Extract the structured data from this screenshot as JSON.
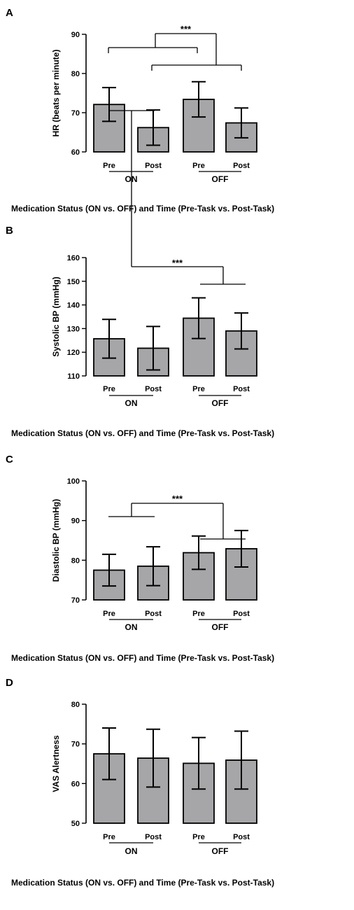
{
  "colors": {
    "bar": "#a6a6a8",
    "stroke": "#000000"
  },
  "chart_data": [
    {
      "type": "bar",
      "panel": "A",
      "ylabel": "HR (beats per minute)",
      "xlabel": "Medication Status (ON vs. OFF) and Time (Pre-Task vs. Post-Task)",
      "ylim": [
        60,
        90
      ],
      "yticks": [
        "60",
        "70",
        "80",
        "90"
      ],
      "categories": [
        "Pre",
        "Post",
        "Pre",
        "Post"
      ],
      "groups": [
        "ON",
        "OFF"
      ],
      "values": [
        72.1,
        66.2,
        73.4,
        67.4
      ],
      "errors": [
        4.3,
        4.5,
        4.5,
        3.8
      ],
      "significance": "***",
      "grid": false
    },
    {
      "type": "bar",
      "panel": "B",
      "ylabel": "Systolic BP (mmHg)",
      "xlabel": "Medication Status (ON vs. OFF) and Time (Pre-Task vs. Post-Task)",
      "ylim": [
        110,
        160
      ],
      "yticks": [
        "110",
        "120",
        "130",
        "140",
        "150",
        "160"
      ],
      "categories": [
        "Pre",
        "Post",
        "Pre",
        "Post"
      ],
      "groups": [
        "ON",
        "OFF"
      ],
      "values": [
        125.7,
        121.7,
        134.4,
        129.0
      ],
      "errors": [
        8.2,
        9.2,
        8.6,
        7.6
      ],
      "significance": "***",
      "grid": false
    },
    {
      "type": "bar",
      "panel": "C",
      "ylabel": "Diastolic BP (mmHg)",
      "xlabel": "Medication Status (ON vs. OFF) and Time (Pre-Task vs. Post-Task)",
      "ylim": [
        70,
        100
      ],
      "yticks": [
        "70",
        "80",
        "90",
        "100"
      ],
      "categories": [
        "Pre",
        "Post",
        "Pre",
        "Post"
      ],
      "groups": [
        "ON",
        "OFF"
      ],
      "values": [
        77.5,
        78.5,
        81.9,
        82.9
      ],
      "errors": [
        4.0,
        4.9,
        4.2,
        4.6
      ],
      "significance": "***",
      "grid": false
    },
    {
      "type": "bar",
      "panel": "D",
      "ylabel": "VAS Alertness",
      "xlabel": "Medication Status (ON vs. OFF) and Time (Pre-Task vs. Post-Task)",
      "ylim": [
        50,
        80
      ],
      "yticks": [
        "50",
        "60",
        "70",
        "80"
      ],
      "categories": [
        "Pre",
        "Post",
        "Pre",
        "Post"
      ],
      "groups": [
        "ON",
        "OFF"
      ],
      "values": [
        67.5,
        66.4,
        65.1,
        65.9
      ],
      "errors": [
        6.5,
        7.3,
        6.5,
        7.3
      ],
      "significance": "",
      "grid": false
    }
  ]
}
